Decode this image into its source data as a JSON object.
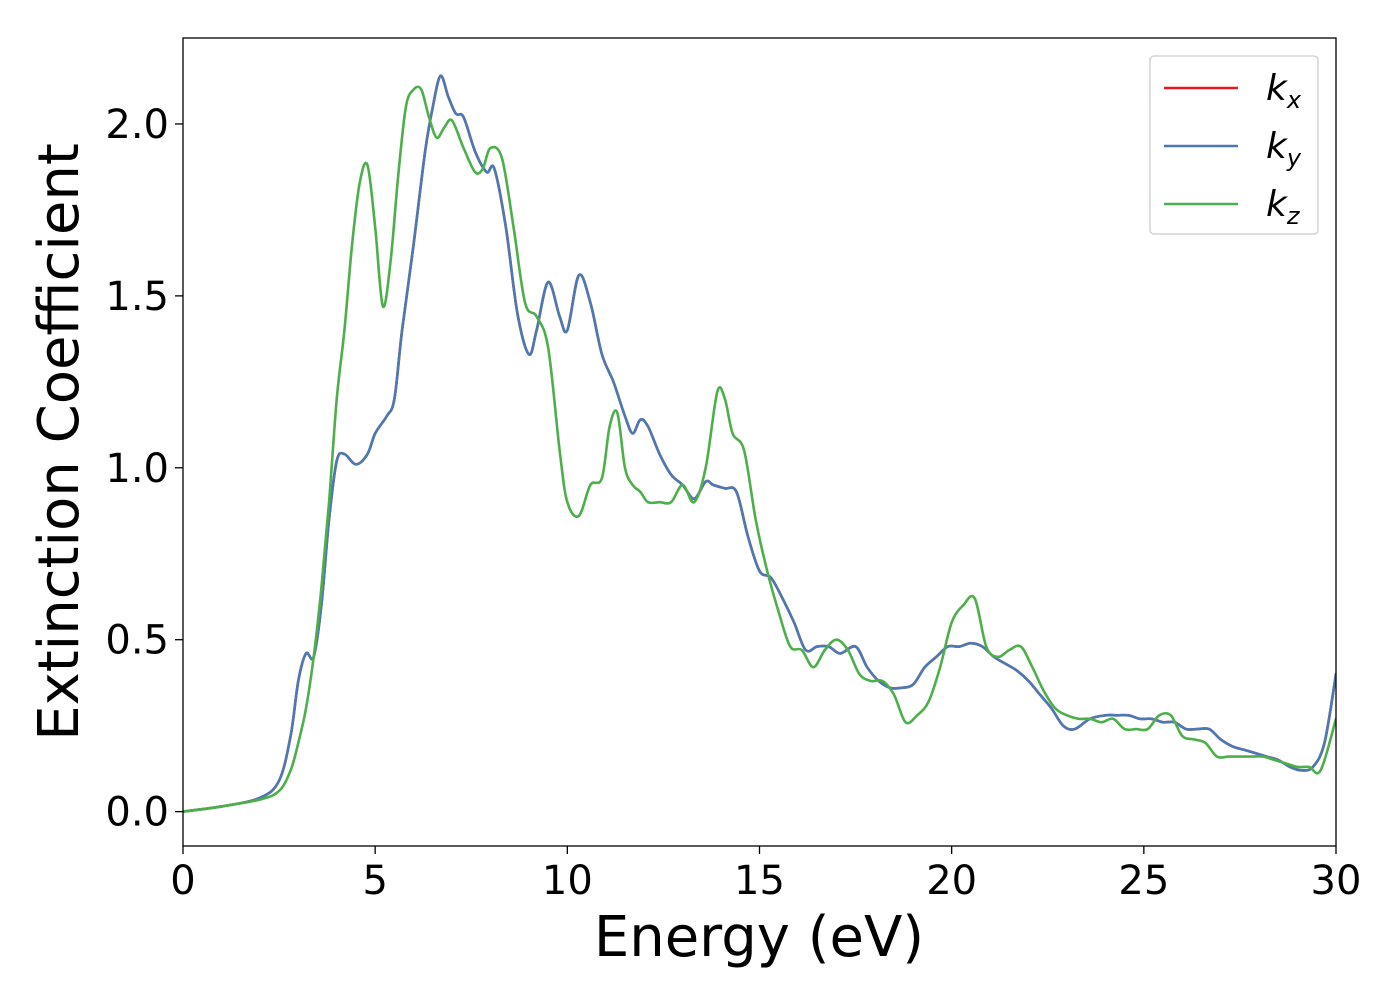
{
  "chart_data": {
    "type": "line",
    "xlabel": "Energy (eV)",
    "ylabel": "Extinction Coefficient",
    "xlim": [
      0,
      30
    ],
    "ylim": [
      -0.1,
      2.25
    ],
    "xticks": [
      0,
      5,
      10,
      15,
      20,
      25,
      30
    ],
    "yticks": [
      0.0,
      0.5,
      1.0,
      1.5,
      2.0
    ],
    "xtick_labels": [
      "0",
      "5",
      "10",
      "15",
      "20",
      "25",
      "30"
    ],
    "ytick_labels": [
      "0.0",
      "0.5",
      "1.0",
      "1.5",
      "2.0"
    ],
    "grid": false,
    "legend_position": "top-right",
    "series": [
      {
        "name_base": "k",
        "name_sub": "x",
        "color": "#e41a1c",
        "x": [
          0,
          1,
          2,
          2.5,
          2.8,
          3.0,
          3.2,
          3.4,
          3.6,
          3.8,
          4.0,
          4.2,
          4.5,
          4.8,
          5.0,
          5.3,
          5.5,
          5.7,
          6.0,
          6.3,
          6.5,
          6.7,
          6.9,
          7.1,
          7.3,
          7.6,
          7.9,
          8.1,
          8.4,
          8.7,
          9.0,
          9.2,
          9.5,
          9.8,
          10.0,
          10.3,
          10.6,
          10.9,
          11.2,
          11.5,
          11.7,
          11.9,
          12.1,
          12.4,
          12.7,
          13.0,
          13.3,
          13.6,
          13.8,
          14.1,
          14.4,
          14.7,
          15.0,
          15.3,
          15.6,
          15.9,
          16.2,
          16.5,
          16.8,
          17.1,
          17.5,
          17.8,
          18.1,
          18.4,
          18.7,
          19.0,
          19.3,
          19.6,
          19.9,
          20.2,
          20.5,
          20.8,
          21.1,
          21.4,
          21.7,
          22.0,
          22.3,
          22.6,
          22.9,
          23.2,
          23.6,
          24.0,
          24.3,
          24.6,
          24.9,
          25.2,
          25.5,
          25.8,
          26.1,
          26.4,
          26.7,
          27.0,
          27.3,
          27.6,
          27.9,
          28.2,
          28.5,
          28.8,
          29.1,
          29.4,
          29.7,
          30
        ],
        "values": [
          0,
          0.015,
          0.04,
          0.09,
          0.22,
          0.38,
          0.46,
          0.45,
          0.6,
          0.85,
          1.02,
          1.04,
          1.01,
          1.04,
          1.1,
          1.15,
          1.2,
          1.4,
          1.65,
          1.92,
          2.05,
          2.14,
          2.08,
          2.03,
          2.02,
          1.92,
          1.86,
          1.87,
          1.7,
          1.45,
          1.33,
          1.4,
          1.54,
          1.44,
          1.4,
          1.56,
          1.48,
          1.33,
          1.25,
          1.15,
          1.1,
          1.14,
          1.12,
          1.04,
          0.98,
          0.95,
          0.91,
          0.96,
          0.95,
          0.94,
          0.93,
          0.8,
          0.7,
          0.68,
          0.62,
          0.55,
          0.47,
          0.48,
          0.48,
          0.46,
          0.48,
          0.42,
          0.38,
          0.36,
          0.36,
          0.37,
          0.42,
          0.45,
          0.48,
          0.48,
          0.49,
          0.48,
          0.45,
          0.43,
          0.41,
          0.38,
          0.34,
          0.3,
          0.25,
          0.24,
          0.27,
          0.28,
          0.28,
          0.28,
          0.27,
          0.27,
          0.26,
          0.26,
          0.24,
          0.24,
          0.24,
          0.21,
          0.19,
          0.18,
          0.17,
          0.16,
          0.15,
          0.13,
          0.12,
          0.13,
          0.2,
          0.4
        ]
      },
      {
        "name_base": "k",
        "name_sub": "y",
        "color": "#4a7ab5",
        "x": [
          0,
          1,
          2,
          2.5,
          2.8,
          3.0,
          3.2,
          3.4,
          3.6,
          3.8,
          4.0,
          4.2,
          4.5,
          4.8,
          5.0,
          5.3,
          5.5,
          5.7,
          6.0,
          6.3,
          6.5,
          6.7,
          6.9,
          7.1,
          7.3,
          7.6,
          7.9,
          8.1,
          8.4,
          8.7,
          9.0,
          9.2,
          9.5,
          9.8,
          10.0,
          10.3,
          10.6,
          10.9,
          11.2,
          11.5,
          11.7,
          11.9,
          12.1,
          12.4,
          12.7,
          13.0,
          13.3,
          13.6,
          13.8,
          14.1,
          14.4,
          14.7,
          15.0,
          15.3,
          15.6,
          15.9,
          16.2,
          16.5,
          16.8,
          17.1,
          17.5,
          17.8,
          18.1,
          18.4,
          18.7,
          19.0,
          19.3,
          19.6,
          19.9,
          20.2,
          20.5,
          20.8,
          21.1,
          21.4,
          21.7,
          22.0,
          22.3,
          22.6,
          22.9,
          23.2,
          23.6,
          24.0,
          24.3,
          24.6,
          24.9,
          25.2,
          25.5,
          25.8,
          26.1,
          26.4,
          26.7,
          27.0,
          27.3,
          27.6,
          27.9,
          28.2,
          28.5,
          28.8,
          29.1,
          29.4,
          29.7,
          30
        ],
        "values": [
          0,
          0.015,
          0.04,
          0.09,
          0.22,
          0.38,
          0.46,
          0.45,
          0.6,
          0.85,
          1.02,
          1.04,
          1.01,
          1.04,
          1.1,
          1.15,
          1.2,
          1.4,
          1.65,
          1.92,
          2.05,
          2.14,
          2.08,
          2.03,
          2.02,
          1.92,
          1.86,
          1.87,
          1.7,
          1.45,
          1.33,
          1.4,
          1.54,
          1.44,
          1.4,
          1.56,
          1.48,
          1.33,
          1.25,
          1.15,
          1.1,
          1.14,
          1.12,
          1.04,
          0.98,
          0.95,
          0.91,
          0.96,
          0.95,
          0.94,
          0.93,
          0.8,
          0.7,
          0.68,
          0.62,
          0.55,
          0.47,
          0.48,
          0.48,
          0.46,
          0.48,
          0.42,
          0.38,
          0.36,
          0.36,
          0.37,
          0.42,
          0.45,
          0.48,
          0.48,
          0.49,
          0.48,
          0.45,
          0.43,
          0.41,
          0.38,
          0.34,
          0.3,
          0.25,
          0.24,
          0.27,
          0.28,
          0.28,
          0.28,
          0.27,
          0.27,
          0.26,
          0.26,
          0.24,
          0.24,
          0.24,
          0.21,
          0.19,
          0.18,
          0.17,
          0.16,
          0.15,
          0.13,
          0.12,
          0.13,
          0.2,
          0.4
        ]
      },
      {
        "name_base": "k",
        "name_sub": "z",
        "color": "#4daf4a",
        "x": [
          0,
          1,
          2,
          2.5,
          2.8,
          3.0,
          3.2,
          3.4,
          3.6,
          3.8,
          4.0,
          4.2,
          4.4,
          4.6,
          4.8,
          5.0,
          5.2,
          5.4,
          5.6,
          5.8,
          6.0,
          6.2,
          6.4,
          6.6,
          6.8,
          7.0,
          7.3,
          7.6,
          7.8,
          8.0,
          8.3,
          8.6,
          8.9,
          9.2,
          9.5,
          9.8,
          10.0,
          10.3,
          10.6,
          10.9,
          11.1,
          11.3,
          11.5,
          11.7,
          11.9,
          12.1,
          12.4,
          12.7,
          13.0,
          13.3,
          13.6,
          13.9,
          14.1,
          14.3,
          14.6,
          14.9,
          15.2,
          15.5,
          15.8,
          16.1,
          16.4,
          16.7,
          17.0,
          17.3,
          17.6,
          17.9,
          18.2,
          18.5,
          18.8,
          19.1,
          19.4,
          19.7,
          20.0,
          20.3,
          20.6,
          20.9,
          21.2,
          21.5,
          21.8,
          22.1,
          22.4,
          22.7,
          23.0,
          23.3,
          23.6,
          23.9,
          24.2,
          24.5,
          24.8,
          25.1,
          25.4,
          25.7,
          26.0,
          26.3,
          26.6,
          26.9,
          27.2,
          27.5,
          27.8,
          28.1,
          28.4,
          28.7,
          29.0,
          29.3,
          29.6,
          30
        ],
        "values": [
          0,
          0.015,
          0.035,
          0.06,
          0.12,
          0.2,
          0.3,
          0.45,
          0.65,
          0.9,
          1.2,
          1.4,
          1.65,
          1.83,
          1.88,
          1.7,
          1.47,
          1.6,
          1.85,
          2.05,
          2.1,
          2.1,
          2.02,
          1.96,
          1.99,
          2.01,
          1.93,
          1.86,
          1.87,
          1.93,
          1.9,
          1.7,
          1.48,
          1.44,
          1.35,
          1.05,
          0.9,
          0.86,
          0.95,
          0.97,
          1.12,
          1.16,
          1.0,
          0.95,
          0.93,
          0.9,
          0.9,
          0.9,
          0.95,
          0.9,
          1.0,
          1.22,
          1.2,
          1.1,
          1.05,
          0.85,
          0.7,
          0.58,
          0.48,
          0.47,
          0.42,
          0.47,
          0.5,
          0.47,
          0.4,
          0.38,
          0.38,
          0.34,
          0.26,
          0.28,
          0.32,
          0.42,
          0.55,
          0.6,
          0.62,
          0.48,
          0.45,
          0.47,
          0.48,
          0.42,
          0.35,
          0.3,
          0.28,
          0.27,
          0.27,
          0.26,
          0.27,
          0.24,
          0.24,
          0.24,
          0.28,
          0.28,
          0.22,
          0.21,
          0.2,
          0.16,
          0.16,
          0.16,
          0.16,
          0.16,
          0.15,
          0.14,
          0.13,
          0.13,
          0.12,
          0.27
        ]
      }
    ]
  }
}
